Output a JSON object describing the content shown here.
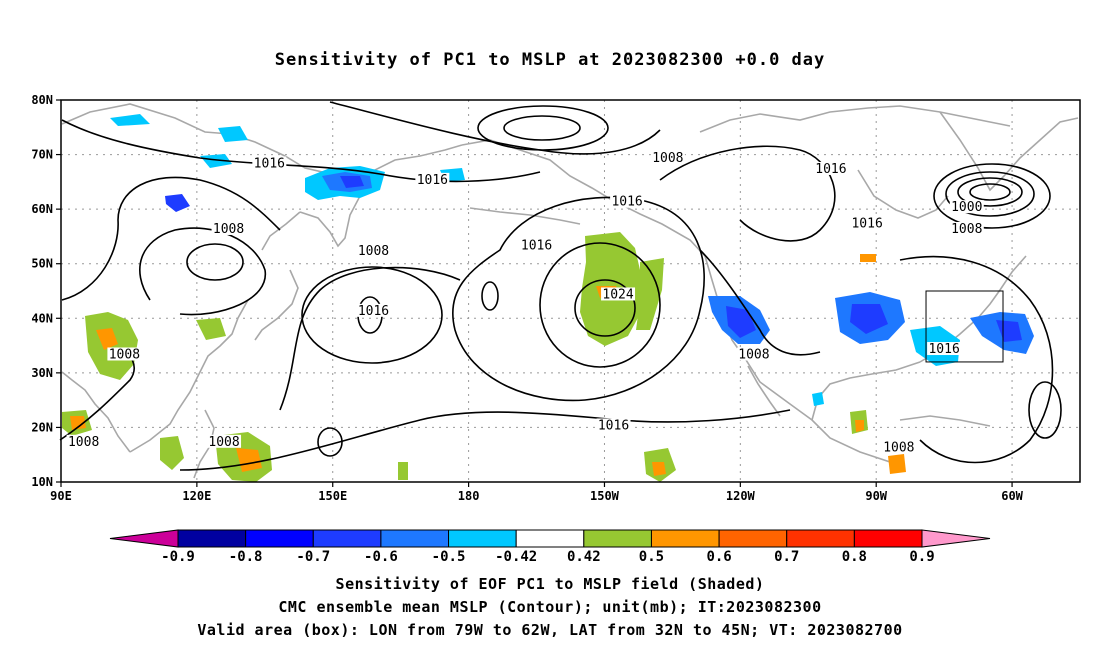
{
  "title": "Sensitivity of PC1 to MSLP at 2023082300 +0.0 day",
  "map": {
    "lon_ticks": [
      "90E",
      "120E",
      "150E",
      "180",
      "150W",
      "120W",
      "90W",
      "60W"
    ],
    "lat_ticks": [
      "80N",
      "70N",
      "60N",
      "50N",
      "40N",
      "30N",
      "20N",
      "10N"
    ],
    "extent": {
      "lon_min": 90,
      "lon_max": 315,
      "lat_min": 10,
      "lat_max": 80
    },
    "contour_labels": [
      {
        "text": "1016",
        "lon": 136,
        "lat": 68
      },
      {
        "text": "1008",
        "lon": 224,
        "lat": 69
      },
      {
        "text": "1016",
        "lon": 260,
        "lat": 67
      },
      {
        "text": "1016",
        "lon": 172,
        "lat": 65
      },
      {
        "text": "1016",
        "lon": 215,
        "lat": 61
      },
      {
        "text": "1000",
        "lon": 290,
        "lat": 60
      },
      {
        "text": "1008",
        "lon": 290,
        "lat": 56
      },
      {
        "text": "1008",
        "lon": 127,
        "lat": 56
      },
      {
        "text": "1016",
        "lon": 268,
        "lat": 57
      },
      {
        "text": "1016",
        "lon": 195,
        "lat": 53
      },
      {
        "text": "1008",
        "lon": 159,
        "lat": 52
      },
      {
        "text": "1024",
        "lon": 213,
        "lat": 44
      },
      {
        "text": "1016",
        "lon": 159,
        "lat": 41
      },
      {
        "text": "1008",
        "lon": 104,
        "lat": 33
      },
      {
        "text": "1008",
        "lon": 243,
        "lat": 33
      },
      {
        "text": "1016",
        "lon": 285,
        "lat": 34
      },
      {
        "text": "1016",
        "lon": 212,
        "lat": 20
      },
      {
        "text": "1008",
        "lon": 95,
        "lat": 17
      },
      {
        "text": "1008",
        "lon": 126,
        "lat": 17
      },
      {
        "text": "1008",
        "lon": 275,
        "lat": 16
      }
    ],
    "valid_box": {
      "lon_min": 281,
      "lon_max": 298,
      "lat_min": 32,
      "lat_max": 45
    },
    "colors": {
      "neg_09": "#0000a0",
      "neg_08": "#0000ff",
      "neg_07": "#1e3cff",
      "neg_06": "#1e78ff",
      "neg_05": "#00c8ff",
      "pos_05": "#96c832",
      "pos_06": "#ff9600",
      "pos_07": "#ff6400",
      "pos_08": "#ff3200",
      "coast": "#a8a8a8",
      "contour": "#000000"
    }
  },
  "colorbar": {
    "labels": [
      "-0.9",
      "-0.8",
      "-0.7",
      "-0.6",
      "-0.5",
      "-0.42",
      "0.42",
      "0.5",
      "0.6",
      "0.7",
      "0.8",
      "0.9"
    ],
    "colors": [
      "#cc0099",
      "#0000a0",
      "#0000ff",
      "#1e3cff",
      "#1e78ff",
      "#00c8ff",
      "#ffffff",
      "#96c832",
      "#ff9600",
      "#ff6400",
      "#ff3200",
      "#ff0000",
      "#ff99cc"
    ]
  },
  "captions": {
    "line1": "Sensitivity of EOF PC1 to MSLP field (Shaded)",
    "line2": "CMC ensemble mean MSLP (Contour); unit(mb); IT:2023082300",
    "line3": "Valid area (box): LON from 79W to 62W, LAT from 32N to 45N; VT: 2023082700"
  }
}
